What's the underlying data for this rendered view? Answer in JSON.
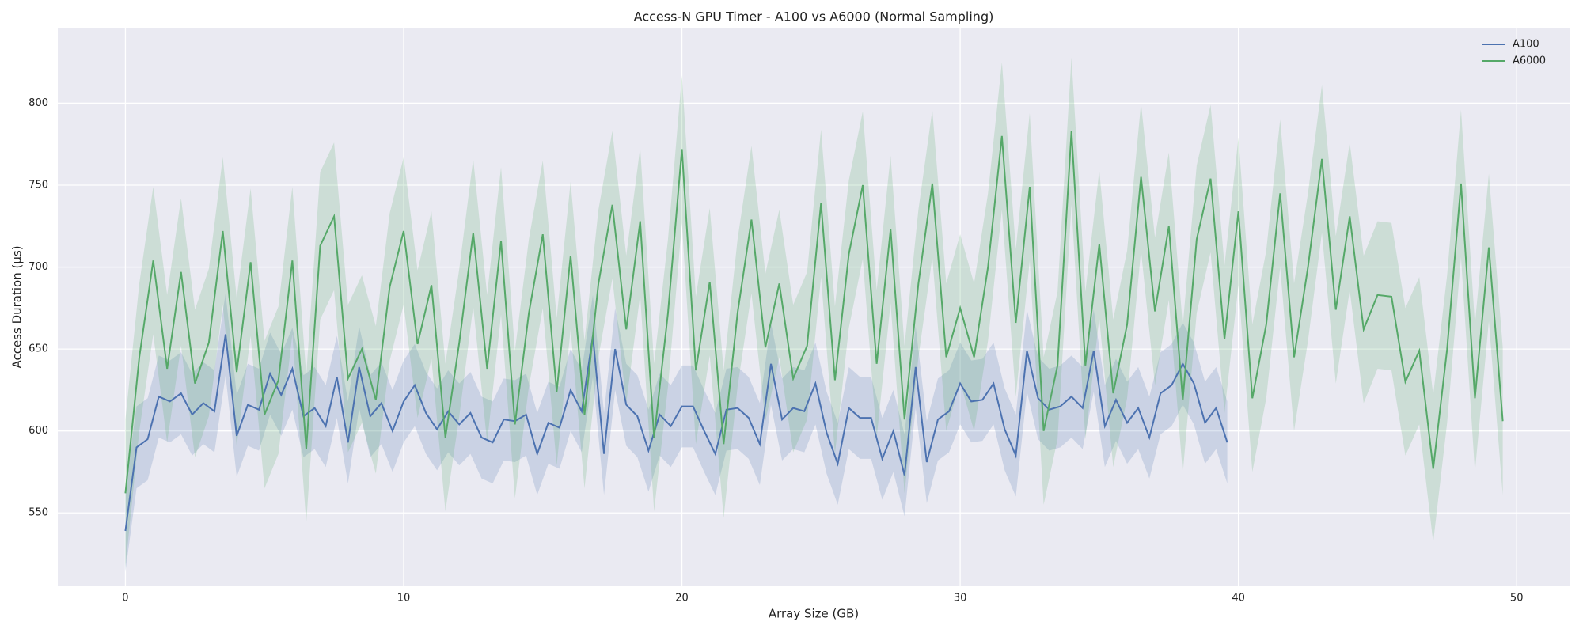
{
  "chart_data": {
    "type": "line",
    "title": "Access-N GPU Timer - A100 vs A6000 (Normal Sampling)",
    "x_label": "Array Size (GB)",
    "y_label": "Access Duration (µs)",
    "xlim": [
      -2.43,
      51.9
    ],
    "ylim": [
      505.7,
      845.6
    ],
    "xticks": [
      0,
      10,
      20,
      30,
      40,
      50
    ],
    "yticks": [
      550,
      600,
      650,
      700,
      750,
      800
    ],
    "grid": true,
    "legend": "upper right",
    "background": "#eaeaf2",
    "series": [
      {
        "name": "A100",
        "color": "#4c72b0",
        "x": [
          0,
          0.4,
          0.8,
          1.2,
          1.6,
          2,
          2.4,
          2.8,
          3.2,
          3.6,
          4,
          4.4,
          4.8,
          5.2,
          5.6,
          6,
          6.4,
          6.8,
          7.2,
          7.6,
          8,
          8.4,
          8.8,
          9.2,
          9.6,
          10,
          10.4,
          10.8,
          11.2,
          11.6,
          12,
          12.4,
          12.8,
          13.2,
          13.6,
          14,
          14.4,
          14.8,
          15.2,
          15.6,
          16,
          16.4,
          16.8,
          17.2,
          17.6,
          18,
          18.4,
          18.8,
          19.2,
          19.6,
          20,
          20.4,
          20.8,
          21.2,
          21.6,
          22,
          22.4,
          22.8,
          23.2,
          23.6,
          24,
          24.4,
          24.8,
          25.2,
          25.6,
          26,
          26.4,
          26.8,
          27.2,
          27.6,
          28,
          28.4,
          28.8,
          29.2,
          29.6,
          30,
          30.4,
          30.8,
          31.2,
          31.6,
          32,
          32.4,
          32.8,
          33.2,
          33.6,
          34,
          34.4,
          34.8,
          35.2,
          35.6,
          36,
          36.4,
          36.8,
          37.2,
          37.6,
          38,
          38.4,
          38.8,
          39.2,
          39.6
        ],
        "values": [
          539,
          590,
          595,
          621,
          618,
          623,
          610,
          617,
          612,
          659,
          597,
          616,
          613,
          635,
          622,
          638,
          609,
          614,
          603,
          633,
          593,
          639,
          609,
          617,
          600,
          618,
          628,
          611,
          601,
          612,
          604,
          611,
          596,
          593,
          607,
          606,
          610,
          586,
          605,
          602,
          625,
          612,
          658,
          586,
          650,
          616,
          609,
          588,
          610,
          603,
          615,
          615,
          600,
          586,
          613,
          614,
          608,
          592,
          641,
          607,
          614,
          612,
          629,
          599,
          580,
          614,
          608,
          608,
          583,
          600,
          573,
          639,
          581,
          607,
          612,
          629,
          618,
          619,
          629,
          601,
          585,
          649,
          620,
          613,
          615,
          621,
          614,
          649,
          603,
          619,
          605,
          614,
          596,
          623,
          628,
          641,
          629,
          605,
          614,
          593
        ],
        "lower": [
          514,
          565,
          570,
          596,
          593,
          598,
          585,
          592,
          587,
          634,
          572,
          591,
          588,
          610,
          597,
          613,
          584,
          589,
          578,
          608,
          568,
          614,
          584,
          592,
          575,
          593,
          603,
          586,
          576,
          587,
          579,
          586,
          571,
          568,
          582,
          581,
          585,
          561,
          580,
          577,
          600,
          587,
          633,
          561,
          625,
          591,
          584,
          563,
          585,
          578,
          590,
          590,
          575,
          561,
          588,
          589,
          583,
          567,
          616,
          582,
          589,
          587,
          604,
          574,
          555,
          589,
          583,
          583,
          558,
          575,
          548,
          614,
          556,
          582,
          587,
          604,
          593,
          594,
          604,
          576,
          560,
          624,
          595,
          588,
          590,
          596,
          589,
          624,
          578,
          594,
          580,
          589,
          571,
          598,
          603,
          616,
          604,
          580,
          589,
          568
        ],
        "upper": [
          564,
          615,
          620,
          646,
          643,
          648,
          635,
          642,
          637,
          684,
          622,
          641,
          638,
          660,
          647,
          663,
          634,
          639,
          628,
          658,
          618,
          664,
          634,
          642,
          625,
          643,
          653,
          636,
          626,
          637,
          629,
          636,
          621,
          618,
          632,
          631,
          635,
          611,
          630,
          627,
          650,
          637,
          683,
          611,
          675,
          641,
          634,
          613,
          635,
          628,
          640,
          640,
          625,
          611,
          638,
          639,
          633,
          617,
          666,
          632,
          639,
          637,
          654,
          624,
          605,
          639,
          633,
          633,
          608,
          625,
          598,
          664,
          606,
          632,
          637,
          654,
          643,
          644,
          654,
          626,
          610,
          674,
          645,
          638,
          640,
          646,
          639,
          674,
          628,
          644,
          630,
          639,
          621,
          648,
          653,
          666,
          654,
          630,
          639,
          618
        ]
      },
      {
        "name": "A6000",
        "color": "#55a868",
        "x": [
          0,
          0.5,
          1,
          1.5,
          2,
          2.5,
          3,
          3.5,
          4,
          4.5,
          5,
          5.5,
          6,
          6.5,
          7,
          7.5,
          8,
          8.5,
          9,
          9.5,
          10,
          10.5,
          11,
          11.5,
          12,
          12.5,
          13,
          13.5,
          14,
          14.5,
          15,
          15.5,
          16,
          16.5,
          17,
          17.5,
          18,
          18.5,
          19,
          19.5,
          20,
          20.5,
          21,
          21.5,
          22,
          22.5,
          23,
          23.5,
          24,
          24.5,
          25,
          25.5,
          26,
          26.5,
          27,
          27.5,
          28,
          28.5,
          29,
          29.5,
          30,
          30.5,
          31,
          31.5,
          32,
          32.5,
          33,
          33.5,
          34,
          34.5,
          35,
          35.5,
          36,
          36.5,
          37,
          37.5,
          38,
          38.5,
          39,
          39.5,
          40,
          40.5,
          41,
          41.5,
          42,
          42.5,
          43,
          43.5,
          44,
          44.5,
          45,
          45.5,
          46,
          46.5,
          47,
          47.5,
          48,
          48.5,
          49,
          49.5
        ],
        "values": [
          562,
          645,
          704,
          638,
          697,
          629,
          654,
          722,
          636,
          703,
          610,
          631,
          704,
          589,
          713,
          731,
          632,
          650,
          619,
          688,
          722,
          653,
          689,
          596,
          654,
          721,
          638,
          716,
          604,
          672,
          720,
          624,
          707,
          610,
          690,
          738,
          662,
          728,
          596,
          672,
          772,
          637,
          691,
          592,
          672,
          729,
          651,
          690,
          632,
          652,
          739,
          631,
          708,
          750,
          641,
          723,
          607,
          690,
          751,
          645,
          675,
          645,
          700,
          780,
          666,
          749,
          600,
          640,
          783,
          640,
          714,
          623,
          665,
          755,
          673,
          725,
          619,
          717,
          754,
          656,
          734,
          620,
          665,
          745,
          645,
          700,
          766,
          674,
          731,
          662,
          683,
          682,
          630,
          649,
          577,
          650,
          751,
          620,
          712,
          606
        ],
        "lower": [
          517,
          600,
          659,
          593,
          652,
          584,
          609,
          677,
          591,
          658,
          565,
          586,
          659,
          544,
          668,
          686,
          587,
          605,
          574,
          643,
          677,
          608,
          644,
          551,
          609,
          676,
          593,
          671,
          559,
          627,
          675,
          579,
          662,
          565,
          645,
          693,
          617,
          683,
          551,
          627,
          727,
          592,
          646,
          547,
          627,
          684,
          606,
          645,
          587,
          607,
          694,
          586,
          663,
          705,
          596,
          678,
          562,
          645,
          706,
          600,
          630,
          600,
          655,
          735,
          621,
          704,
          555,
          595,
          738,
          595,
          669,
          578,
          620,
          710,
          628,
          680,
          574,
          672,
          709,
          611,
          689,
          575,
          620,
          700,
          600,
          655,
          721,
          629,
          686,
          617,
          638,
          637,
          585,
          604,
          532,
          605,
          706,
          575,
          667,
          561
        ],
        "upper": [
          607,
          690,
          749,
          683,
          742,
          674,
          699,
          767,
          681,
          748,
          655,
          676,
          749,
          634,
          758,
          776,
          677,
          695,
          664,
          733,
          767,
          698,
          734,
          641,
          699,
          766,
          683,
          761,
          649,
          717,
          765,
          669,
          752,
          655,
          735,
          783,
          707,
          773,
          641,
          717,
          817,
          682,
          736,
          637,
          717,
          774,
          696,
          735,
          677,
          697,
          784,
          676,
          753,
          795,
          686,
          768,
          652,
          735,
          796,
          690,
          720,
          690,
          745,
          825,
          711,
          794,
          645,
          685,
          828,
          685,
          759,
          668,
          710,
          800,
          718,
          770,
          664,
          762,
          799,
          701,
          779,
          665,
          710,
          790,
          690,
          745,
          811,
          719,
          776,
          707,
          728,
          727,
          675,
          694,
          622,
          695,
          796,
          665,
          757,
          651
        ]
      }
    ]
  }
}
